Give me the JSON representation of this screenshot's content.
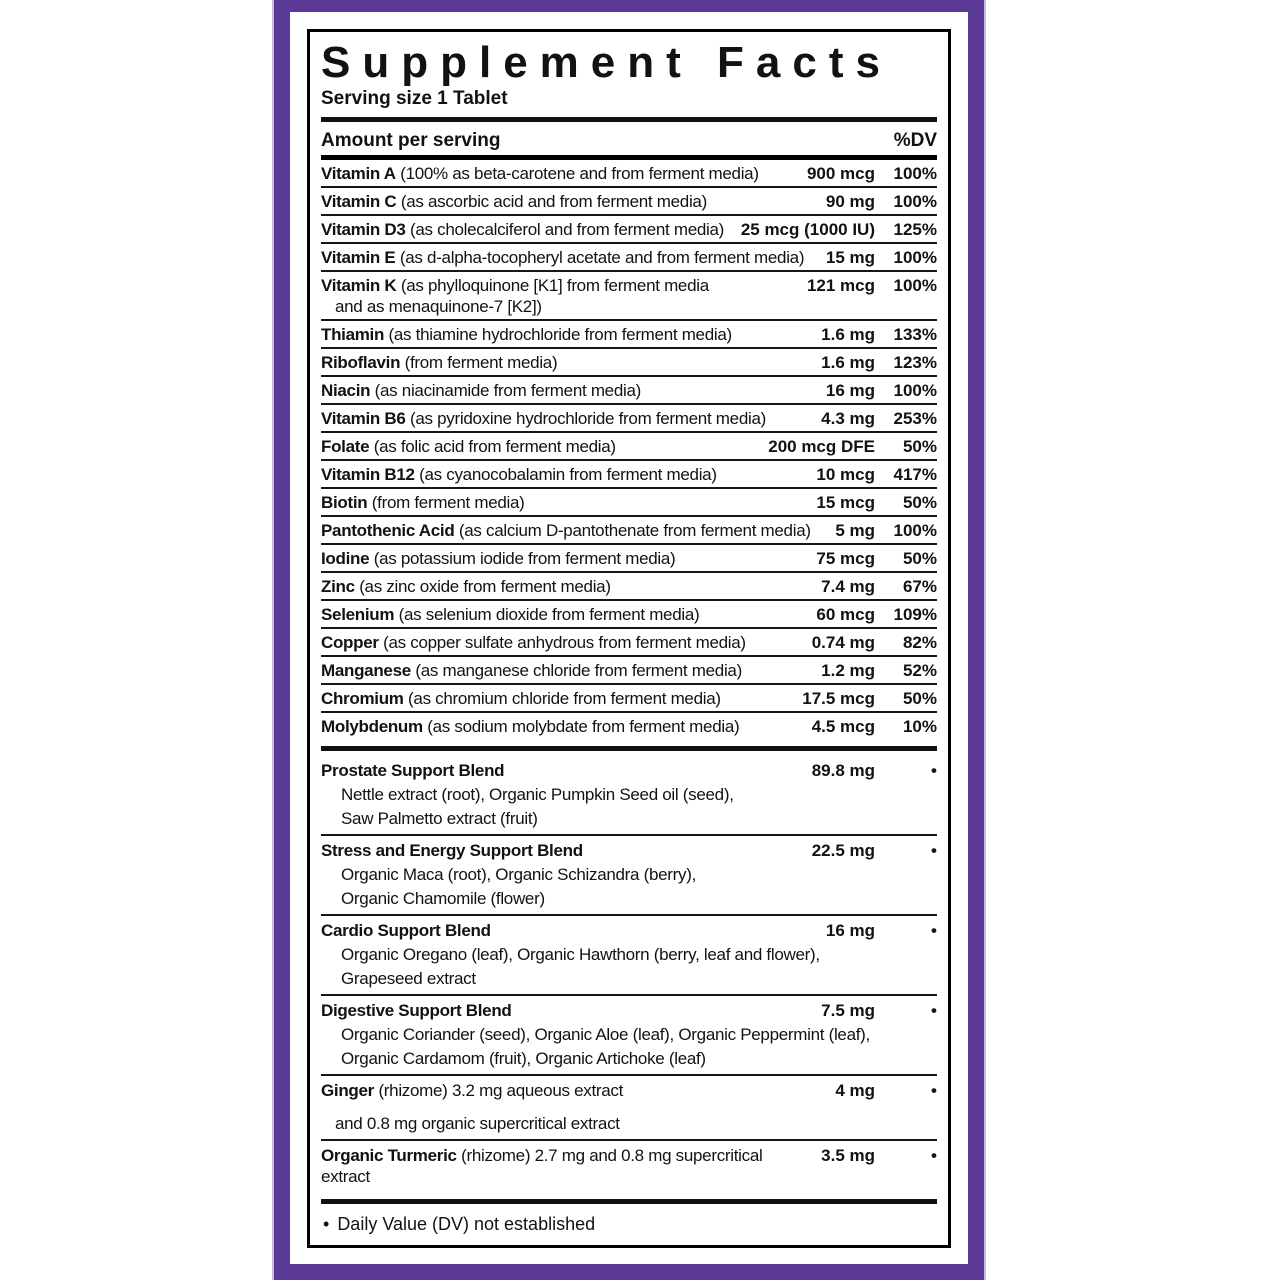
{
  "label": {
    "title": "Supplement Facts",
    "serving_size": "Serving size 1 Tablet",
    "columns": {
      "amount": "Amount per serving",
      "dv": "%DV"
    },
    "footnote_bullet": "•",
    "footnote": "Daily Value (DV) not established",
    "colors": {
      "frame_purple": "#5b3a97",
      "frame_outline": "#c9bcdf",
      "bar_black": "#111111",
      "text": "#121212"
    }
  },
  "nutrients": [
    {
      "name": "Vitamin A",
      "desc": "(100% as beta-carotene and from ferment media)",
      "amount": "900 mcg",
      "dv": "100%"
    },
    {
      "name": "Vitamin C",
      "desc": "(as ascorbic acid and from ferment media)",
      "amount": "90 mg",
      "dv": "100%"
    },
    {
      "name": "Vitamin D3",
      "desc": "(as cholecalciferol and from ferment media)",
      "amount": "25 mcg (1000 IU)",
      "dv": "125%"
    },
    {
      "name": "Vitamin E",
      "desc": "(as d-alpha-tocopheryl acetate and from ferment media)",
      "amount": "15 mg",
      "dv": "100%"
    },
    {
      "name": "Vitamin K",
      "desc": "(as phylloquinone [K1] from ferment media",
      "cont": "and as menaquinone-7 [K2])",
      "amount": "121 mcg",
      "dv": "100%"
    },
    {
      "name": "Thiamin",
      "desc": "(as thiamine hydrochloride from ferment media)",
      "amount": "1.6 mg",
      "dv": "133%"
    },
    {
      "name": "Riboflavin",
      "desc": "(from ferment media)",
      "amount": "1.6 mg",
      "dv": "123%"
    },
    {
      "name": "Niacin",
      "desc": "(as niacinamide from ferment media)",
      "amount": "16 mg",
      "dv": "100%"
    },
    {
      "name": "Vitamin B6",
      "desc": "(as pyridoxine hydrochloride from ferment media)",
      "amount": "4.3 mg",
      "dv": "253%"
    },
    {
      "name": "Folate",
      "desc": "(as folic acid from ferment media)",
      "amount": "200 mcg DFE",
      "dv": "50%"
    },
    {
      "name": "Vitamin B12",
      "desc": "(as cyanocobalamin from ferment media)",
      "amount": "10 mcg",
      "dv": "417%"
    },
    {
      "name": "Biotin",
      "desc": "(from ferment media)",
      "amount": "15 mcg",
      "dv": "50%"
    },
    {
      "name": "Pantothenic Acid",
      "desc": "(as calcium D-pantothenate from ferment media)",
      "amount": "5 mg",
      "dv": "100%"
    },
    {
      "name": "Iodine",
      "desc": "(as potassium iodide from ferment media)",
      "amount": "75 mcg",
      "dv": "50%"
    },
    {
      "name": "Zinc",
      "desc": "(as zinc oxide from ferment media)",
      "amount": "7.4 mg",
      "dv": "67%"
    },
    {
      "name": "Selenium",
      "desc": "(as selenium dioxide from ferment media)",
      "amount": "60 mcg",
      "dv": "109%"
    },
    {
      "name": "Copper",
      "desc": "(as copper sulfate anhydrous from ferment media)",
      "amount": "0.74 mg",
      "dv": "82%"
    },
    {
      "name": "Manganese",
      "desc": "(as manganese chloride from ferment media)",
      "amount": "1.2 mg",
      "dv": "52%"
    },
    {
      "name": "Chromium",
      "desc": "(as chromium chloride from ferment media)",
      "amount": "17.5 mcg",
      "dv": "50%"
    },
    {
      "name": "Molybdenum",
      "desc": "(as sodium molybdate from ferment media)",
      "amount": "4.5 mcg",
      "dv": "10%"
    }
  ],
  "blends": [
    {
      "name": "Prostate Support Blend",
      "desc": "",
      "amount": "89.8 mg",
      "dv": "•",
      "sub": [
        "Nettle extract (root), Organic Pumpkin Seed oil (seed),",
        "Saw Palmetto extract (fruit)"
      ],
      "sub_gap": false
    },
    {
      "name": "Stress and Energy Support Blend",
      "desc": "",
      "amount": "22.5 mg",
      "dv": "•",
      "sub": [
        "Organic Maca (root), Organic Schizandra (berry),",
        "Organic Chamomile (flower)"
      ],
      "sub_gap": false
    },
    {
      "name": "Cardio Support Blend",
      "desc": "",
      "amount": "16 mg",
      "dv": "•",
      "sub": [
        "Organic Oregano (leaf), Organic Hawthorn (berry, leaf and flower),",
        "Grapeseed extract"
      ],
      "sub_gap": false
    },
    {
      "name": "Digestive Support Blend",
      "desc": "",
      "amount": "7.5 mg",
      "dv": "•",
      "sub": [
        "Organic Coriander (seed), Organic Aloe (leaf), Organic Peppermint (leaf),",
        "Organic Cardamom (fruit), Organic Artichoke (leaf)"
      ],
      "sub_gap": false
    },
    {
      "name": "Ginger",
      "desc": "(rhizome) 3.2 mg aqueous extract",
      "amount": "4 mg",
      "dv": "•",
      "sub": [
        "and 0.8 mg organic supercritical extract"
      ],
      "sub_gap": true
    },
    {
      "name": "Organic Turmeric",
      "desc": "(rhizome) 2.7 mg and 0.8 mg supercritical extract",
      "amount": "3.5 mg",
      "dv": "•",
      "sub": [],
      "sub_gap": false
    }
  ]
}
